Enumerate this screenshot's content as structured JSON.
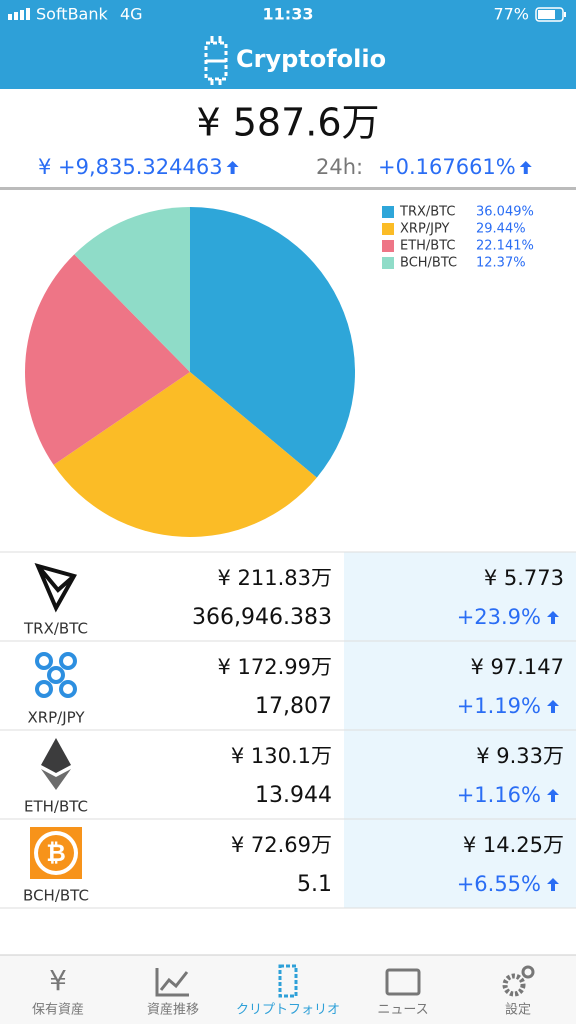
{
  "status_bar": {
    "carrier": "SoftBank",
    "network": "4G",
    "time": "11:33",
    "battery": "77%"
  },
  "header": {
    "title": "Cryptofolio"
  },
  "summary": {
    "total": "¥ 587.6万",
    "change": "¥ +9,835.324463",
    "period": "24h:",
    "period_change": "+0.167661%"
  },
  "chart_data": {
    "type": "pie",
    "categories": [
      "TRX/BTC",
      "XRP/JPY",
      "ETH/BTC",
      "BCH/BTC"
    ],
    "values": [
      36.049,
      29.44,
      22.141,
      12.37
    ],
    "value_labels": [
      "36.049%",
      "29.44%",
      "22.141%",
      "12.37%"
    ],
    "colors": [
      "#2ea6d9",
      "#fbbc26",
      "#ee7586",
      "#8fdcc8"
    ],
    "legend": "top-right"
  },
  "holdings": [
    {
      "name": "TRX/BTC",
      "value": "¥ 211.83万",
      "amount": "366,946.383",
      "price": "¥ 5.773",
      "change": "+23.9%"
    },
    {
      "name": "XRP/JPY",
      "value": "¥ 172.99万",
      "amount": "17,807",
      "price": "¥ 97.147",
      "change": "+1.19%"
    },
    {
      "name": "ETH/BTC",
      "value": "¥ 130.1万",
      "amount": "13.944",
      "price": "¥ 9.33万",
      "change": "+1.16%"
    },
    {
      "name": "BCH/BTC",
      "value": "¥ 72.69万",
      "amount": "5.1",
      "price": "¥ 14.25万",
      "change": "+6.55%"
    }
  ],
  "tabs": [
    "保有資産",
    "資産推移",
    "クリプトフォリオ",
    "ニュース",
    "設定"
  ]
}
